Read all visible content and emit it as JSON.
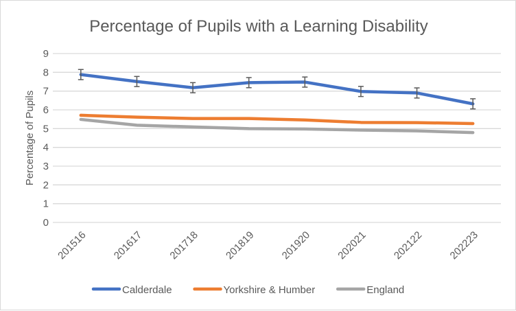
{
  "chart_data": {
    "type": "line",
    "title": "Percentage of Pupils with a Learning Disability",
    "xlabel": "",
    "ylabel": "Percentage of Pupils",
    "ylim": [
      0,
      9
    ],
    "yticks": [
      "0",
      "1",
      "2",
      "3",
      "4",
      "5",
      "6",
      "7",
      "8",
      "9"
    ],
    "grid": true,
    "legend_position": "bottom",
    "categories": [
      "201516",
      "201617",
      "201718",
      "201819",
      "201920",
      "202021",
      "202122",
      "202223"
    ],
    "series": [
      {
        "name": "Calderdale",
        "color": "#4472C4",
        "values": [
          7.88,
          7.51,
          7.18,
          7.45,
          7.48,
          6.98,
          6.9,
          6.32
        ],
        "error": [
          0.27,
          0.27,
          0.27,
          0.27,
          0.27,
          0.27,
          0.27,
          0.27
        ]
      },
      {
        "name": "Yorkshire & Humber",
        "color": "#ED7D31",
        "values": [
          5.71,
          5.61,
          5.54,
          5.54,
          5.46,
          5.33,
          5.32,
          5.27
        ]
      },
      {
        "name": "England",
        "color": "#A5A5A5",
        "values": [
          5.49,
          5.18,
          5.09,
          5.0,
          4.98,
          4.92,
          4.88,
          4.79
        ]
      }
    ]
  }
}
